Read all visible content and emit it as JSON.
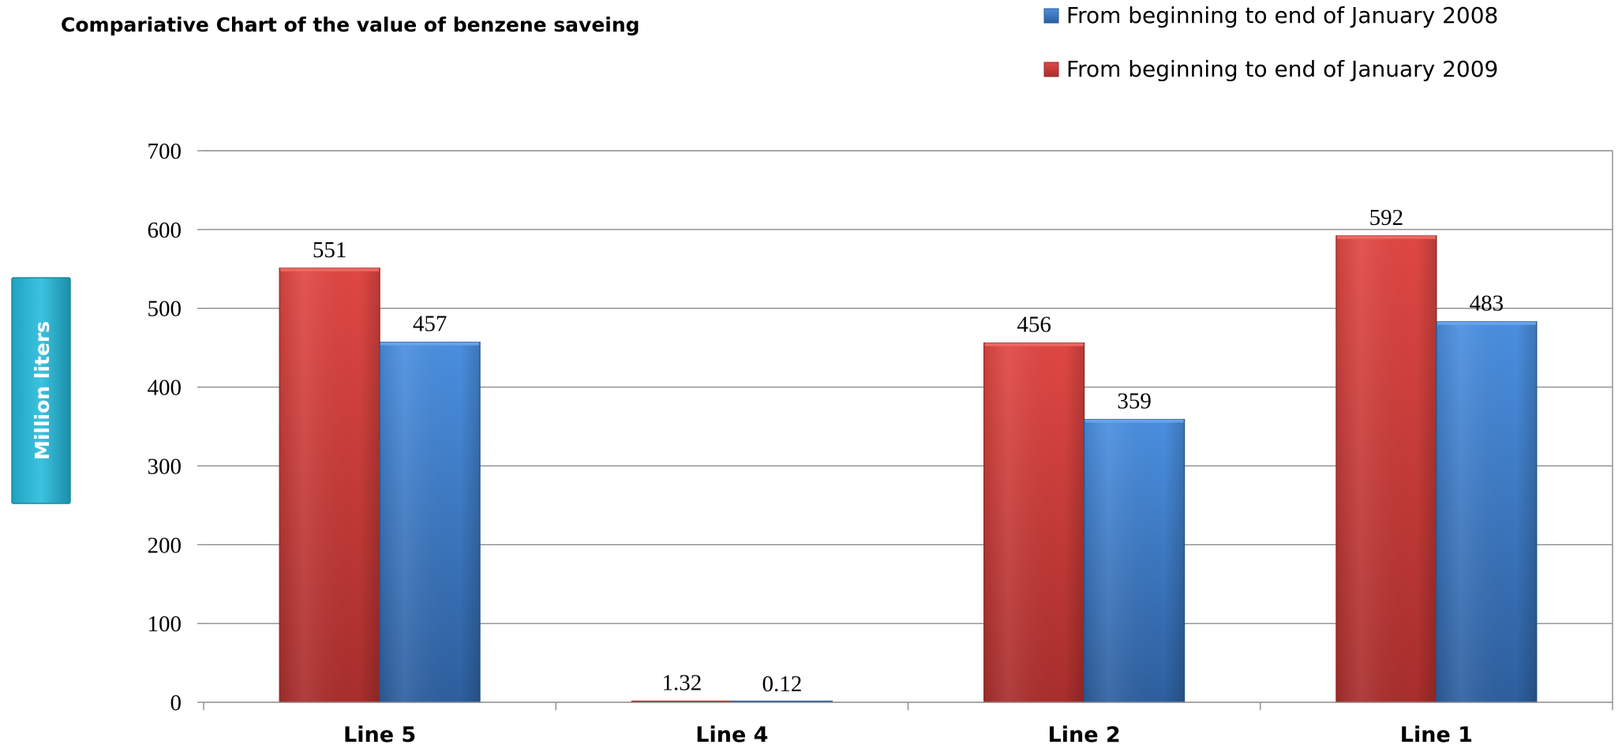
{
  "chart_data": {
    "type": "bar",
    "title": "Compariative Chart of  the value of benzene saveing",
    "ylabel": "Million liters",
    "xlabel": "",
    "categories": [
      "Line 5",
      "Line 4",
      "Line 2",
      "Line 1"
    ],
    "series": [
      {
        "name": "From beginning to end of January 2009",
        "color": "#d63e3a",
        "values": [
          551,
          1.32,
          456,
          592
        ],
        "labels": [
          "551",
          "1.32",
          "456",
          "592"
        ]
      },
      {
        "name": "From beginning to end of January 2008",
        "color": "#3e82d6",
        "values": [
          457,
          0.12,
          359,
          483
        ],
        "labels": [
          "457",
          "0.12",
          "359",
          "483"
        ]
      }
    ],
    "legend_order": [
      1,
      0
    ],
    "ylim": [
      0,
      700
    ],
    "yticks": [
      0,
      100,
      200,
      300,
      400,
      500,
      600,
      700
    ],
    "grid": true,
    "legend_position": "top-right"
  }
}
